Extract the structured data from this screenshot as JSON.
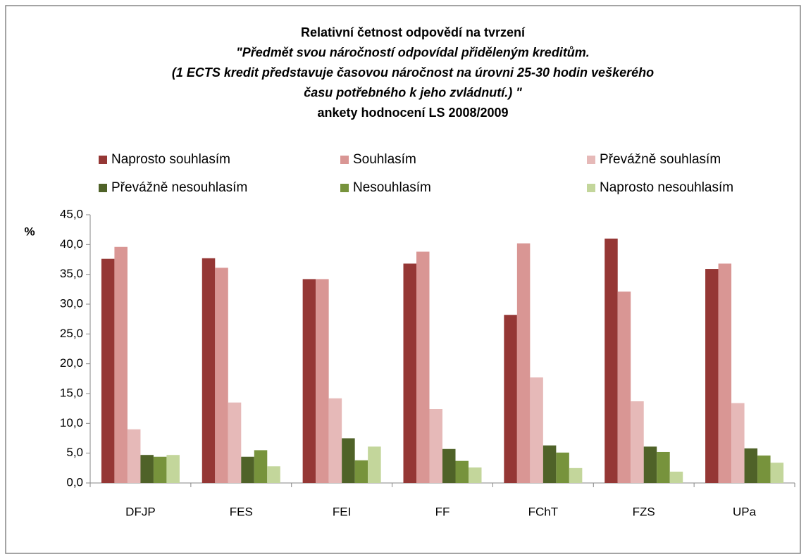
{
  "chart_data": {
    "type": "bar",
    "title": [
      "Relativní četnost odpovědí na tvrzení",
      "\"Předmět svou náročností odpovídal přiděleným kreditům.",
      "(1 ECTS kredit představuje časovou náročnost na úrovni 25-30 hodin veškerého",
      "času potřebného k jeho zvládnutí.) \"",
      "ankety hodnocení LS 2008/2009"
    ],
    "ylabel": "%",
    "categories": [
      "DFJP",
      "FES",
      "FEI",
      "FF",
      "FChT",
      "FZS",
      "UPa"
    ],
    "series": [
      {
        "name": "Naprosto souhlasím",
        "color": "#953735",
        "values": [
          37.6,
          37.7,
          34.2,
          36.8,
          28.2,
          41.0,
          35.9
        ]
      },
      {
        "name": "Souhlasím",
        "color": "#d99694",
        "values": [
          39.6,
          36.1,
          34.2,
          38.8,
          40.2,
          32.1,
          36.8
        ]
      },
      {
        "name": "Převážně souhlasím",
        "color": "#e6b9b8",
        "values": [
          9.0,
          13.5,
          14.2,
          12.4,
          17.7,
          13.7,
          13.4
        ]
      },
      {
        "name": "Převážně nesouhlasím",
        "color": "#4f6228",
        "values": [
          4.7,
          4.4,
          7.5,
          5.7,
          6.3,
          6.1,
          5.8
        ]
      },
      {
        "name": "Nesouhlasím",
        "color": "#77933c",
        "values": [
          4.4,
          5.5,
          3.8,
          3.7,
          5.1,
          5.2,
          4.6
        ]
      },
      {
        "name": "Naprosto nesouhlasím",
        "color": "#c3d69b",
        "values": [
          4.7,
          2.8,
          6.1,
          2.6,
          2.5,
          1.9,
          3.4
        ]
      }
    ],
    "ylim": [
      0,
      45
    ],
    "yticks": [
      {
        "value": 0,
        "label": "0,0"
      },
      {
        "value": 5,
        "label": "5,0"
      },
      {
        "value": 10,
        "label": "10,0"
      },
      {
        "value": 15,
        "label": "15,0"
      },
      {
        "value": 20,
        "label": "20,0"
      },
      {
        "value": 25,
        "label": "25,0"
      },
      {
        "value": 30,
        "label": "30,0"
      },
      {
        "value": 35,
        "label": "35,0"
      },
      {
        "value": 40,
        "label": "40,0"
      },
      {
        "value": 45,
        "label": "45,0"
      }
    ],
    "legend": "top",
    "grid": false
  }
}
